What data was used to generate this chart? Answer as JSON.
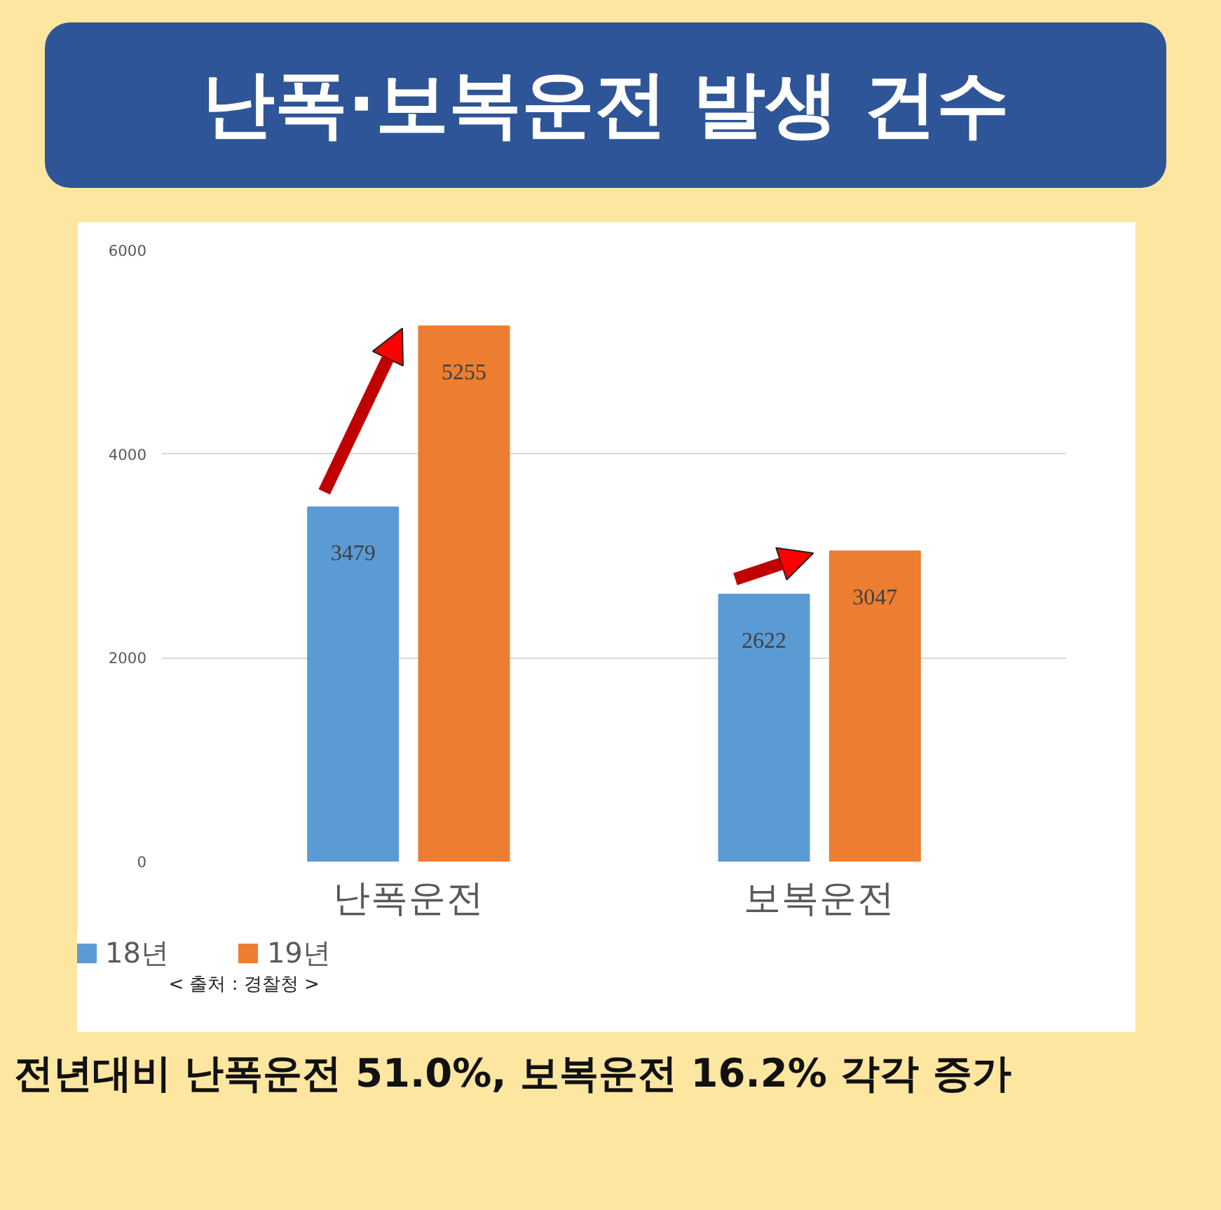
{
  "chart_data": {
    "type": "bar",
    "title": "난폭·보복운전 발생 건수",
    "categories": [
      "난폭운전",
      "보복운전"
    ],
    "series": [
      {
        "name": "18년",
        "color": "#5b9bd5",
        "values": [
          3479,
          2622
        ]
      },
      {
        "name": "19년",
        "color": "#ed7d31",
        "values": [
          5255,
          3047
        ]
      }
    ],
    "ylim": [
      0,
      6000
    ],
    "yticks": [
      0,
      2000,
      4000,
      6000
    ],
    "grid": "y",
    "legend": "bottom",
    "data_labels": true,
    "annotations": [
      "< 출처 : 경찰청 >",
      "전년대비 난폭운전 51.0%, 보복운전 16.2% 각각 증가"
    ]
  }
}
